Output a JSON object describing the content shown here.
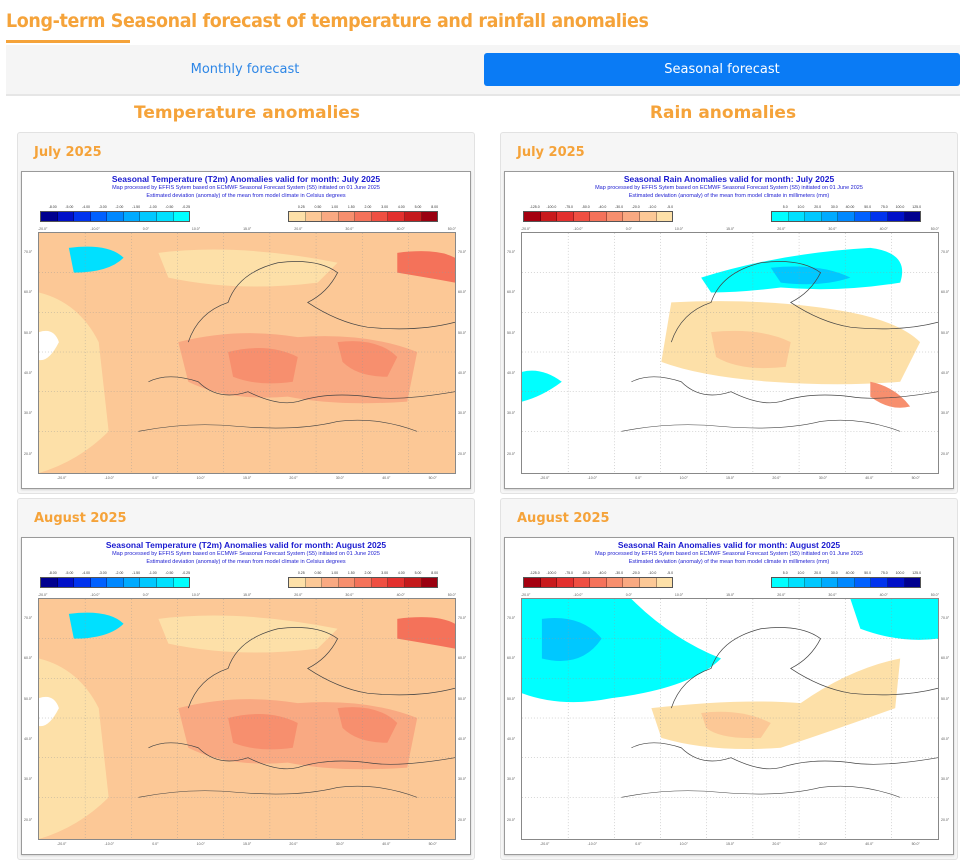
{
  "page": {
    "title": "Long-term Seasonal forecast of temperature and rainfall anomalies"
  },
  "tabs": [
    {
      "label": "Monthly forecast",
      "active": false
    },
    {
      "label": "Seasonal forecast",
      "active": true
    }
  ],
  "columns": {
    "temperature": "Temperature anomalies",
    "rain": "Rain anomalies"
  },
  "colors": {
    "accent": "#f5a33a",
    "tab_active": "#0a7bf5",
    "tab_inactive_text": "#2d86e6",
    "map_text": "#1a1ad0"
  },
  "legends": {
    "temperature": {
      "negative_ticks": [
        "-8.00",
        "-5.00",
        "-4.00",
        "-3.00",
        "-2.00",
        "-1.50",
        "-1.00",
        "-0.50",
        "-0.25"
      ],
      "negative_colors": [
        "#00008f",
        "#0010c8",
        "#0033ee",
        "#0060ff",
        "#0088ff",
        "#00aaff",
        "#00c8ff",
        "#00e0ff",
        "#00ffff"
      ],
      "positive_ticks": [
        "0.25",
        "0.50",
        "1.00",
        "1.50",
        "2.00",
        "3.00",
        "4.00",
        "5.00",
        "8.00"
      ],
      "positive_colors": [
        "#fde0a8",
        "#fcc896",
        "#f9a982",
        "#f78f6e",
        "#f4725a",
        "#ef4f42",
        "#e3302e",
        "#c41a1c",
        "#9a0010"
      ]
    },
    "rain": {
      "negative_ticks": [
        "-125.0",
        "-100.0",
        "-75.0",
        "-50.0",
        "-40.0",
        "-30.0",
        "-20.0",
        "-10.0",
        "-5.0"
      ],
      "negative_colors": [
        "#a50010",
        "#c81a1c",
        "#e3302e",
        "#ef4f42",
        "#f4725a",
        "#f78f6e",
        "#f9a982",
        "#fcc896",
        "#fde0a8"
      ],
      "positive_ticks": [
        "5.0",
        "10.0",
        "20.0",
        "30.0",
        "40.00",
        "50.0",
        "75.0",
        "100.0",
        "125.0"
      ],
      "positive_colors": [
        "#00ffff",
        "#00e0ff",
        "#00c8ff",
        "#00aaff",
        "#0088ff",
        "#0060ff",
        "#0033ee",
        "#0010c8",
        "#00008f"
      ]
    },
    "longitudes": [
      "-20.0°",
      "-10.0°",
      "0.0°",
      "10.0°",
      "15.0°",
      "20.0°",
      "30.0°",
      "40.0°",
      "50.0°"
    ],
    "latitudes": [
      "70.0°",
      "60.0°",
      "50.0°",
      "40.0°",
      "30.0°",
      "20.0°"
    ]
  },
  "cards": [
    {
      "month": "July 2025",
      "type": "temperature",
      "map_title": "Seasonal Temperature (T2m) Anomalies valid for month: July 2025",
      "map_subtitle": "Map processed by EFFIS Sytem based on ECMWF Seasonal Forecast System (S5) initiated on 01 June 2025",
      "map_description": "Estimated deviation (anomaly) of the mean from model climate in Celsius degrees"
    },
    {
      "month": "July 2025",
      "type": "rain",
      "map_title": "Seasonal Rain Anomalies valid for month: July 2025",
      "map_subtitle": "Map processed by EFFIS Sytem based on ECMWF Seasonal Forecast System (S5) initiated on 01 June 2025",
      "map_description": "Estimated deviation (anomaly) of the mean from model climate in millimeters (mm)"
    },
    {
      "month": "August 2025",
      "type": "temperature",
      "map_title": "Seasonal Temperature (T2m) Anomalies valid for month: August 2025",
      "map_subtitle": "Map processed by EFFIS Sytem based on ECMWF Seasonal Forecast System (S5) initiated on 01 June 2025",
      "map_description": "Estimated deviation (anomaly) of the mean from model climate in Celsius degrees"
    },
    {
      "month": "August 2025",
      "type": "rain",
      "map_title": "Seasonal Rain Anomalies valid for month: August 2025",
      "map_subtitle": "Map processed by EFFIS Sytem based on ECMWF Seasonal Forecast System (S5) initiated on 01 June 2025",
      "map_description": "Estimated deviation (anomaly) of the mean from model climate in millimeters (mm)"
    }
  ]
}
